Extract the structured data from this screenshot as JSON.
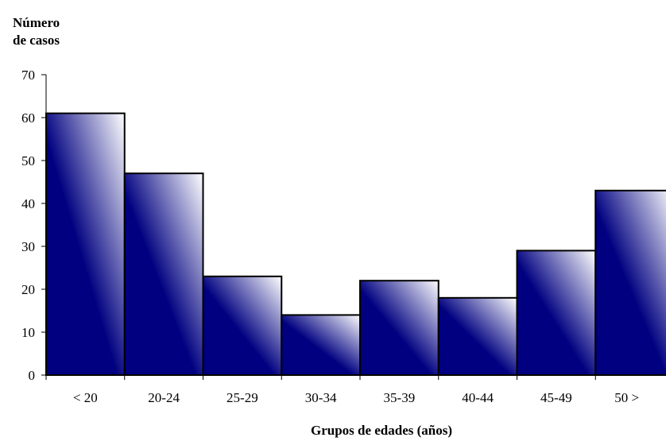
{
  "chart_data": {
    "type": "bar",
    "ylabel_line1": "Número",
    "ylabel_line2": "de casos",
    "xlabel": "Grupos de edades (años)",
    "categories": [
      "< 20",
      "20-24",
      "25-29",
      "30-34",
      "35-39",
      "40-44",
      "45-49",
      "50 >"
    ],
    "values": [
      61,
      47,
      23,
      14,
      22,
      18,
      29,
      43
    ],
    "ylim": [
      0,
      70
    ],
    "yticks": [
      0,
      10,
      20,
      30,
      40,
      50,
      60,
      70
    ],
    "grid": false,
    "colors": {
      "bar_dark": "#000080",
      "bar_light": "#ffffff",
      "outline": "#000000"
    }
  }
}
